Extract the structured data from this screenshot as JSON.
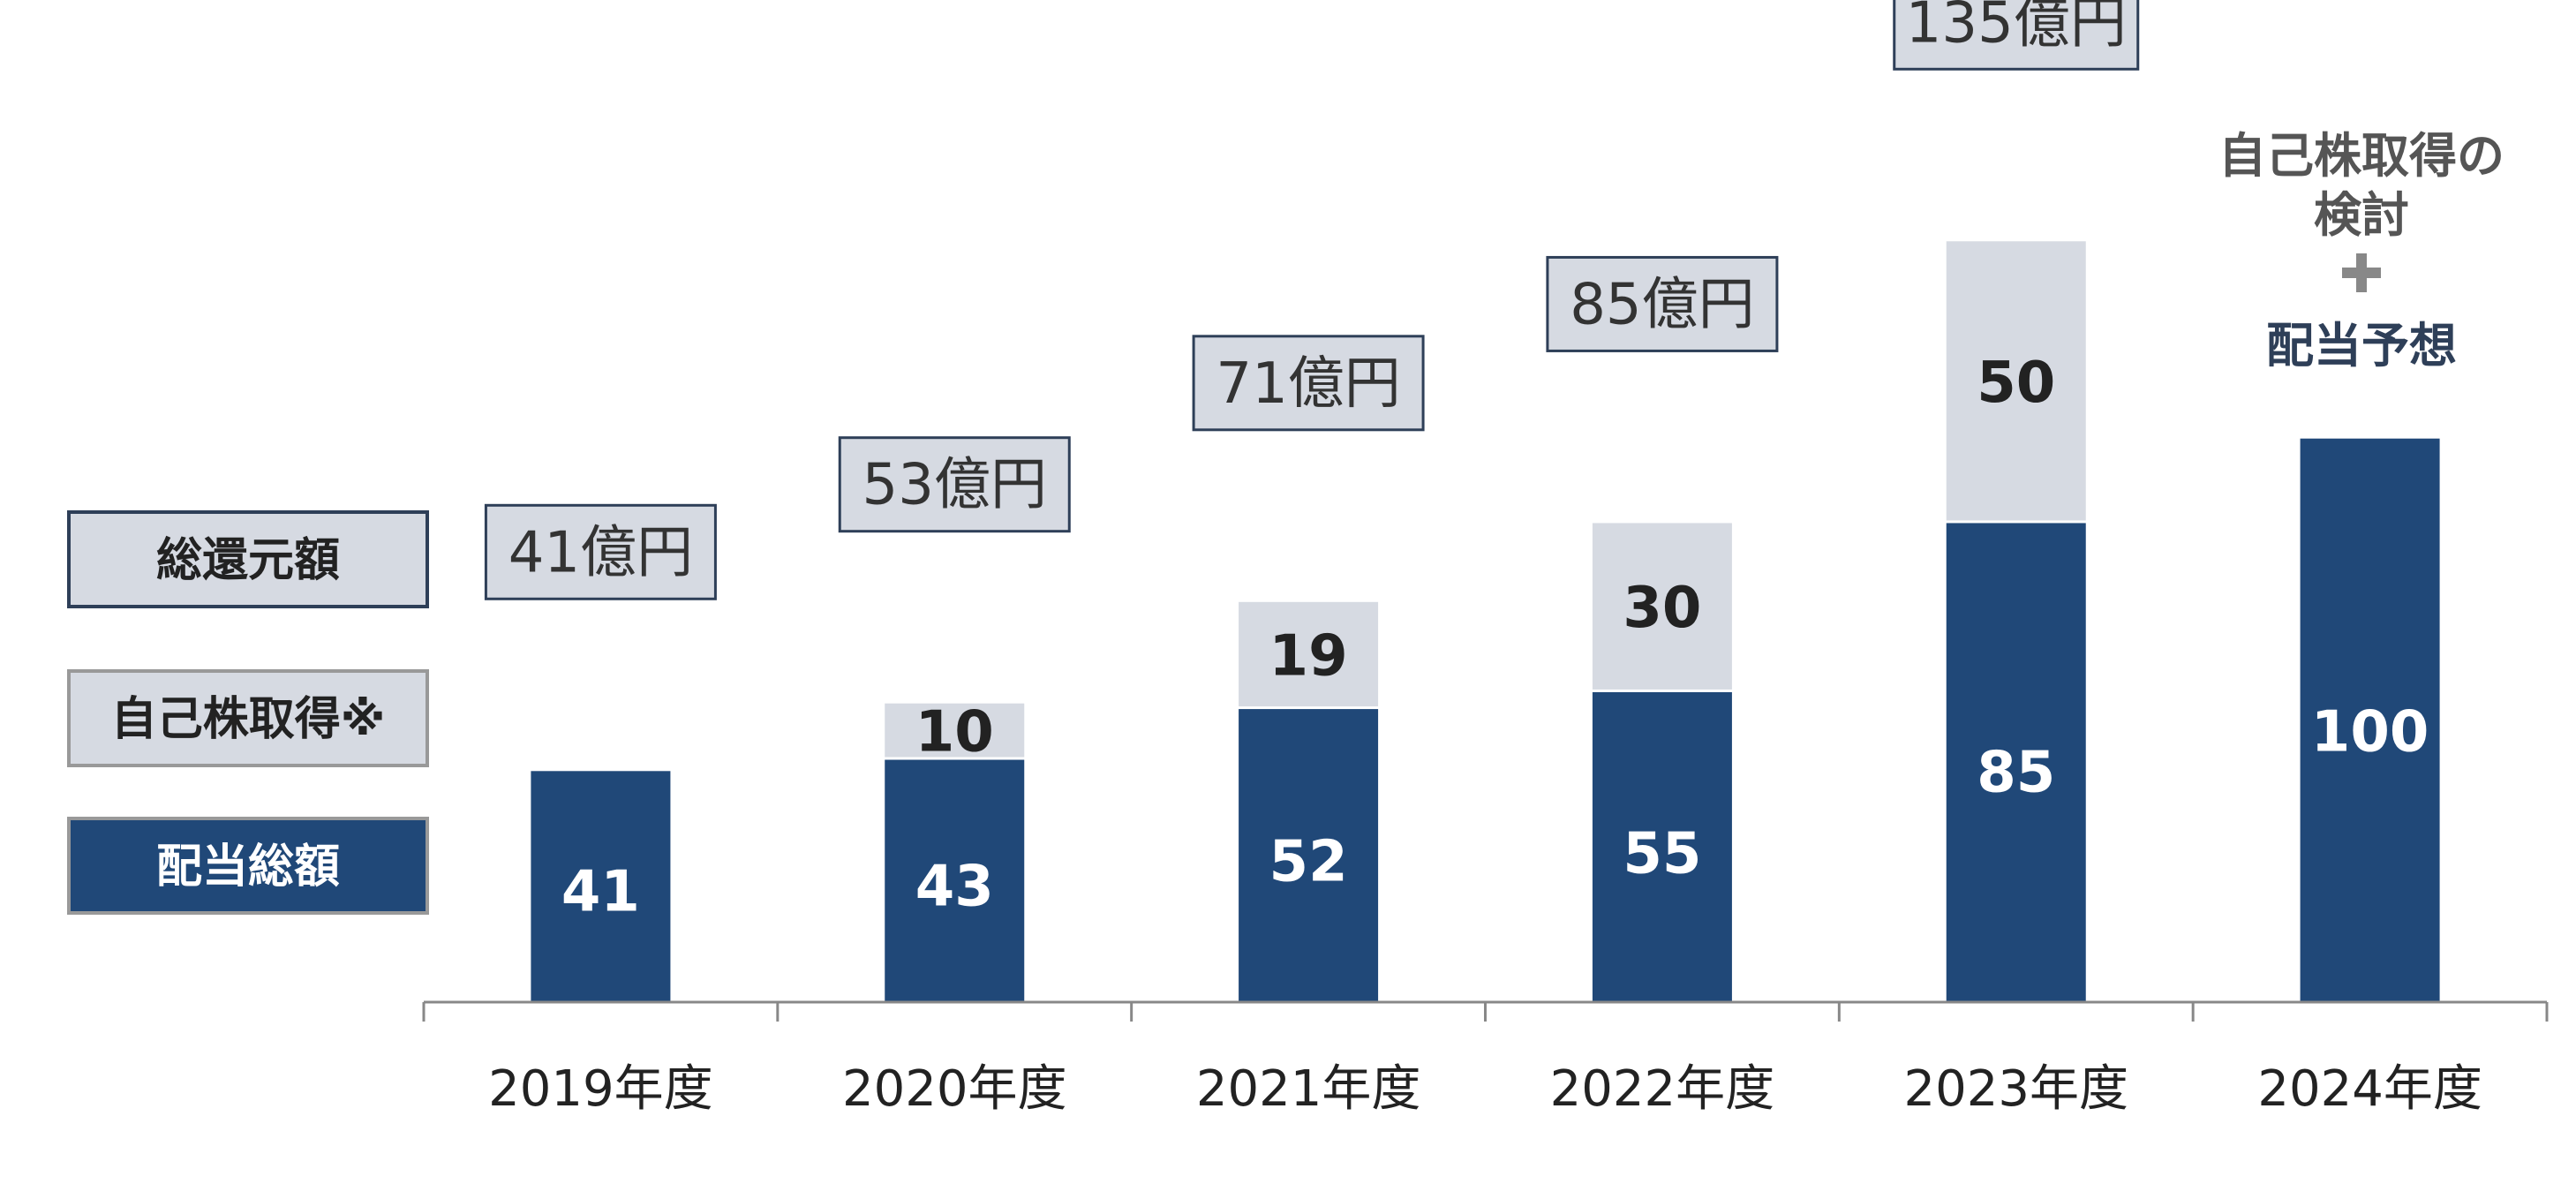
{
  "colors": {
    "dividend": "#204878",
    "buyback": "#d6dae2",
    "total_box_fill": "#d6dae2",
    "total_box_stroke": "#2e3f58",
    "axis": "#888888",
    "note_text": "#555555",
    "note_accent": "#2e3f58"
  },
  "legend": {
    "total": "総還元額",
    "buyback": "自己株取得※",
    "dividend": "配当総額"
  },
  "note_2024": {
    "line1": "自己株取得の",
    "line2": "検討",
    "plus": "+",
    "line3": "配当予想"
  },
  "chart_data": {
    "type": "bar",
    "stacked": true,
    "categories": [
      "2019年度",
      "2020年度",
      "2021年度",
      "2022年度",
      "2023年度",
      "2024年度"
    ],
    "series": [
      {
        "name": "配当総額",
        "values": [
          41,
          43,
          52,
          55,
          85,
          100
        ]
      },
      {
        "name": "自己株取得※",
        "values": [
          null,
          10,
          19,
          30,
          50,
          null
        ]
      }
    ],
    "totals": [
      "41億円",
      "53億円",
      "71億円",
      "85億円",
      "135億円",
      null
    ],
    "ylim": [
      0,
      135
    ],
    "grid": false,
    "legend_position": "left"
  }
}
